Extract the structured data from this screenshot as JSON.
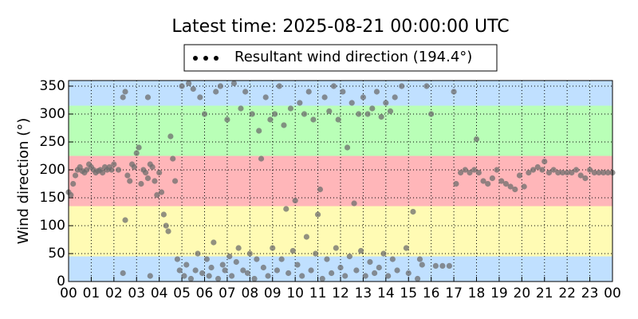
{
  "chart_data": {
    "type": "scatter",
    "title": "Latest time: 2025-08-21 00:00:00 UTC",
    "y_label": "Wind direction (°)",
    "xlim": [
      0,
      24
    ],
    "ylim": [
      0,
      360
    ],
    "xticks": [
      {
        "value": 0,
        "label": "00"
      },
      {
        "value": 1,
        "label": "01"
      },
      {
        "value": 2,
        "label": "02"
      },
      {
        "value": 3,
        "label": "03"
      },
      {
        "value": 4,
        "label": "04"
      },
      {
        "value": 5,
        "label": "05"
      },
      {
        "value": 6,
        "label": "06"
      },
      {
        "value": 7,
        "label": "07"
      },
      {
        "value": 8,
        "label": "08"
      },
      {
        "value": 9,
        "label": "09"
      },
      10,
      11,
      12,
      13,
      14,
      15,
      16,
      17,
      18,
      19,
      20,
      21,
      22,
      23,
      {
        "value": 24,
        "label": "00"
      }
    ],
    "yticks": [
      0,
      50,
      100,
      150,
      200,
      250,
      300,
      350
    ],
    "grid": true,
    "bands": [
      {
        "from": 0,
        "to": 45,
        "color": "#c0e0ff"
      },
      {
        "from": 45,
        "to": 135,
        "color": "#fffbb4"
      },
      {
        "from": 135,
        "to": 225,
        "color": "#ffb6b9"
      },
      {
        "from": 225,
        "to": 315,
        "color": "#b9ffb7"
      },
      {
        "from": 315,
        "to": 360,
        "color": "#c0e0ff"
      }
    ],
    "series": [
      {
        "name": "Resultant wind direction (194.4°)",
        "color": "#6e6e6e",
        "x": [
          0,
          0.1,
          0.2,
          0.3,
          0.4,
          0.5,
          0.6,
          0.7,
          0.8,
          0.9,
          1,
          1.1,
          1.2,
          1.3,
          1.4,
          1.5,
          1.6,
          1.7,
          1.8,
          1.9,
          2,
          2.2,
          2.4,
          2.5,
          2.6,
          2.7,
          2.8,
          2.9,
          3,
          3.1,
          3.2,
          3.3,
          3.4,
          3.5,
          3.6,
          3.7,
          3.8,
          3.9,
          4,
          4.1,
          4.2,
          4.3,
          4.4,
          4.5,
          2.5,
          3.5,
          2.4,
          3.6,
          4.6,
          4.7,
          4.8,
          4.9,
          5,
          5.1,
          5.2,
          5.3,
          5.4,
          5.5,
          5.6,
          5.7,
          5.8,
          5.9,
          6,
          6.1,
          6.2,
          6.3,
          6.4,
          6.5,
          6.6,
          6.7,
          6.8,
          6.9,
          7,
          7.1,
          7.2,
          7.3,
          7.4,
          7.5,
          7.6,
          7.7,
          7.8,
          7.9,
          8,
          8.1,
          8.2,
          8.3,
          8.4,
          8.5,
          8.6,
          8.7,
          8.8,
          8.9,
          9,
          9.1,
          9.2,
          9.3,
          9.4,
          9.5,
          9.6,
          9.7,
          9.8,
          9.9,
          10,
          10.1,
          10.2,
          10.3,
          10.4,
          10.5,
          10.6,
          10.7,
          10.8,
          10.9,
          11,
          11.1,
          11.2,
          11.3,
          11.4,
          11.5,
          11.6,
          11.7,
          11.8,
          11.9,
          12,
          12.1,
          12.2,
          12.3,
          12.4,
          12.5,
          12.6,
          12.7,
          12.8,
          12.9,
          13,
          13.1,
          13.2,
          13.3,
          13.4,
          13.5,
          13.6,
          13.7,
          13.8,
          13.9,
          14,
          14.1,
          14.2,
          14.3,
          14.4,
          14.5,
          14.7,
          14.9,
          15,
          15.2,
          15.4,
          15.5,
          15.6,
          15.8,
          16,
          16.2,
          16.5,
          16.8,
          17,
          17.1,
          17.3,
          17.5,
          17.7,
          17.9,
          18,
          18.1,
          18.3,
          18.5,
          18.7,
          18.9,
          19.1,
          19.3,
          19.5,
          19.7,
          19.9,
          20.1,
          20.3,
          20.5,
          20.7,
          20.9,
          21,
          21.2,
          21.4,
          21.6,
          21.8,
          22,
          22.2,
          22.4,
          22.6,
          22.8,
          23,
          23.2,
          23.4,
          23.6,
          23.8,
          24
        ],
        "values": [
          160,
          155,
          175,
          190,
          200,
          205,
          198,
          195,
          200,
          210,
          205,
          200,
          195,
          198,
          200,
          195,
          205,
          200,
          205,
          200,
          210,
          200,
          330,
          340,
          190,
          180,
          210,
          205,
          230,
          240,
          175,
          200,
          195,
          185,
          210,
          205,
          180,
          155,
          195,
          160,
          120,
          100,
          90,
          260,
          110,
          330,
          15,
          10,
          220,
          180,
          40,
          20,
          350,
          10,
          30,
          355,
          5,
          345,
          20,
          50,
          330,
          15,
          300,
          40,
          10,
          25,
          70,
          340,
          5,
          350,
          30,
          20,
          290,
          45,
          10,
          355,
          35,
          60,
          310,
          20,
          340,
          15,
          50,
          300,
          5,
          40,
          270,
          220,
          25,
          330,
          10,
          290,
          60,
          300,
          20,
          350,
          40,
          280,
          130,
          15,
          310,
          55,
          145,
          30,
          320,
          10,
          300,
          80,
          340,
          20,
          290,
          50,
          120,
          165,
          5,
          330,
          40,
          305,
          15,
          350,
          60,
          290,
          25,
          340,
          10,
          240,
          45,
          320,
          140,
          20,
          300,
          55,
          330,
          10,
          300,
          35,
          310,
          15,
          340,
          25,
          295,
          50,
          320,
          10,
          305,
          40,
          330,
          20,
          350,
          60,
          15,
          125,
          5,
          40,
          30,
          350,
          300,
          28,
          28,
          28,
          340,
          175,
          195,
          200,
          195,
          200,
          255,
          195,
          180,
          175,
          185,
          200,
          180,
          175,
          170,
          165,
          190,
          170,
          195,
          200,
          205,
          200,
          215,
          195,
          200,
          195,
          195,
          195,
          195,
          200,
          190,
          185,
          200,
          195,
          195,
          195,
          195,
          195
        ]
      }
    ]
  }
}
